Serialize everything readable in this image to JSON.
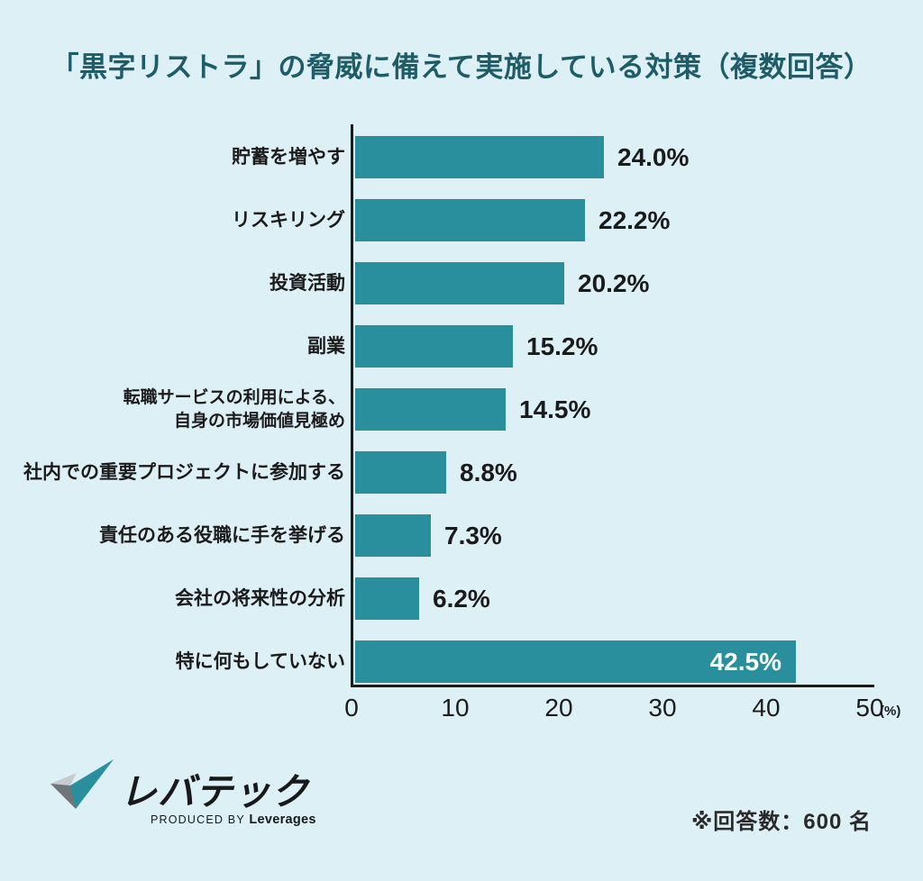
{
  "page": {
    "background_color": "#DCF0F6"
  },
  "chart_data": {
    "type": "bar",
    "orientation": "horizontal",
    "title": "「黒字リストラ」の脅威に備えて実施している対策（複数回答）",
    "categories": [
      "貯蓄を増やす",
      "リスキリング",
      "投資活動",
      "副業",
      "転職サービスの利用による、\n自身の市場価値見極め",
      "社内での重要プロジェクトに参加する",
      "責任のある役職に手を挙げる",
      "会社の将来性の分析",
      "特に何もしていない"
    ],
    "values": [
      24.0,
      22.2,
      20.2,
      15.2,
      14.5,
      8.8,
      7.3,
      6.2,
      42.5
    ],
    "value_labels": [
      "24.0%",
      "22.2%",
      "20.2%",
      "15.2%",
      "14.5%",
      "8.8%",
      "7.3%",
      "6.2%",
      "42.5%"
    ],
    "xlim": [
      0,
      50
    ],
    "x_ticks": [
      "0",
      "10",
      "20",
      "30",
      "40",
      "50"
    ],
    "x_unit": "(%)",
    "bar_color": "#298F9C",
    "axis_color": "#1A1A1A",
    "title_color": "#1E5C68",
    "value_label_inside_index": 8,
    "grid": "off",
    "legend": "none"
  },
  "footer": {
    "logo_brand": "レバテック",
    "logo_produced_by": "PRODUCED BY",
    "logo_company": "Leverages",
    "note": "※回答数：600 名"
  }
}
